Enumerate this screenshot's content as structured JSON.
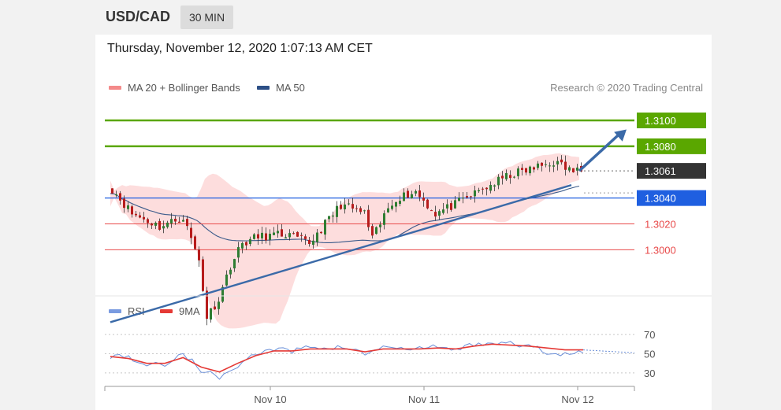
{
  "header": {
    "symbol": "USD/CAD",
    "interval": "30 MIN"
  },
  "datetime": "Thursday, November 12, 2020 1:07:13 AM CET",
  "legend": {
    "ma20": "MA 20 + Bollinger Bands",
    "ma50": "MA 50",
    "rsi": "RSI",
    "rsi_ma": "9MA"
  },
  "credit": "Research © 2020 Trading Central",
  "colors": {
    "resistance": "#5aa700",
    "support": "#1f5fe0",
    "minor_support": "#e84a4a",
    "price": "#333333",
    "candle_up": "#2e7d32",
    "candle_down": "#b71c1c",
    "bollinger": "#fcd2d2",
    "ma50": "#3a5a8a",
    "trendline": "#3b6aa8",
    "rsi": "#6b8fd8",
    "rsi_ma": "#e53935"
  },
  "chart_data": [
    {
      "type": "candlestick",
      "ylim": [
        1.2968,
        1.3114
      ],
      "x_ticks": [
        "Nov 10",
        "Nov 11",
        "Nov 12"
      ],
      "levels": [
        {
          "label": "1.3100",
          "value": 1.31,
          "role": "resistance"
        },
        {
          "label": "1.3080",
          "value": 1.308,
          "role": "resistance"
        },
        {
          "label": "1.3061",
          "value": 1.3061,
          "role": "price"
        },
        {
          "label": "1.3040",
          "value": 1.304,
          "role": "support"
        },
        {
          "label": "1.3020",
          "value": 1.302,
          "role": "minor_support"
        },
        {
          "label": "1.3000",
          "value": 1.3,
          "role": "minor_support"
        }
      ],
      "trendline": {
        "from": [
          0,
          1.2944
        ],
        "to": [
          117,
          1.305
        ]
      },
      "projection": {
        "from": [
          119,
          1.3061
        ],
        "to": [
          131,
          1.3093
        ]
      },
      "anchors": {
        "x": [
          0,
          5,
          12,
          18,
          22,
          24,
          27,
          30,
          33,
          37,
          44,
          50,
          58,
          64,
          66,
          70,
          72,
          77,
          82,
          87,
          93,
          101,
          106,
          112,
          116,
          117
        ],
        "close": [
          1.3047,
          1.3028,
          1.3018,
          1.3025,
          1.2992,
          1.2948,
          1.2962,
          1.2988,
          1.3005,
          1.301,
          1.3012,
          1.3005,
          1.3035,
          1.3028,
          1.3008,
          1.3032,
          1.304,
          1.3045,
          1.3028,
          1.3035,
          1.3045,
          1.3058,
          1.3062,
          1.3068,
          1.3062,
          1.3061
        ]
      }
    },
    {
      "type": "line",
      "name": "RSI",
      "ylim": [
        20,
        80
      ],
      "y_ticks": [
        30,
        50,
        70
      ],
      "rsi": [
        48,
        47,
        38,
        39,
        51,
        33,
        25,
        38,
        50,
        55,
        52,
        58,
        56,
        57,
        49,
        58,
        54,
        56,
        57,
        54,
        60,
        62,
        60,
        58,
        52,
        50,
        51
      ],
      "ma": [
        47,
        45,
        40,
        40,
        46,
        36,
        31,
        40,
        48,
        53,
        53,
        55,
        55,
        55,
        52,
        55,
        55,
        55,
        56,
        55,
        58,
        60,
        59,
        58,
        56,
        54,
        54
      ]
    }
  ]
}
